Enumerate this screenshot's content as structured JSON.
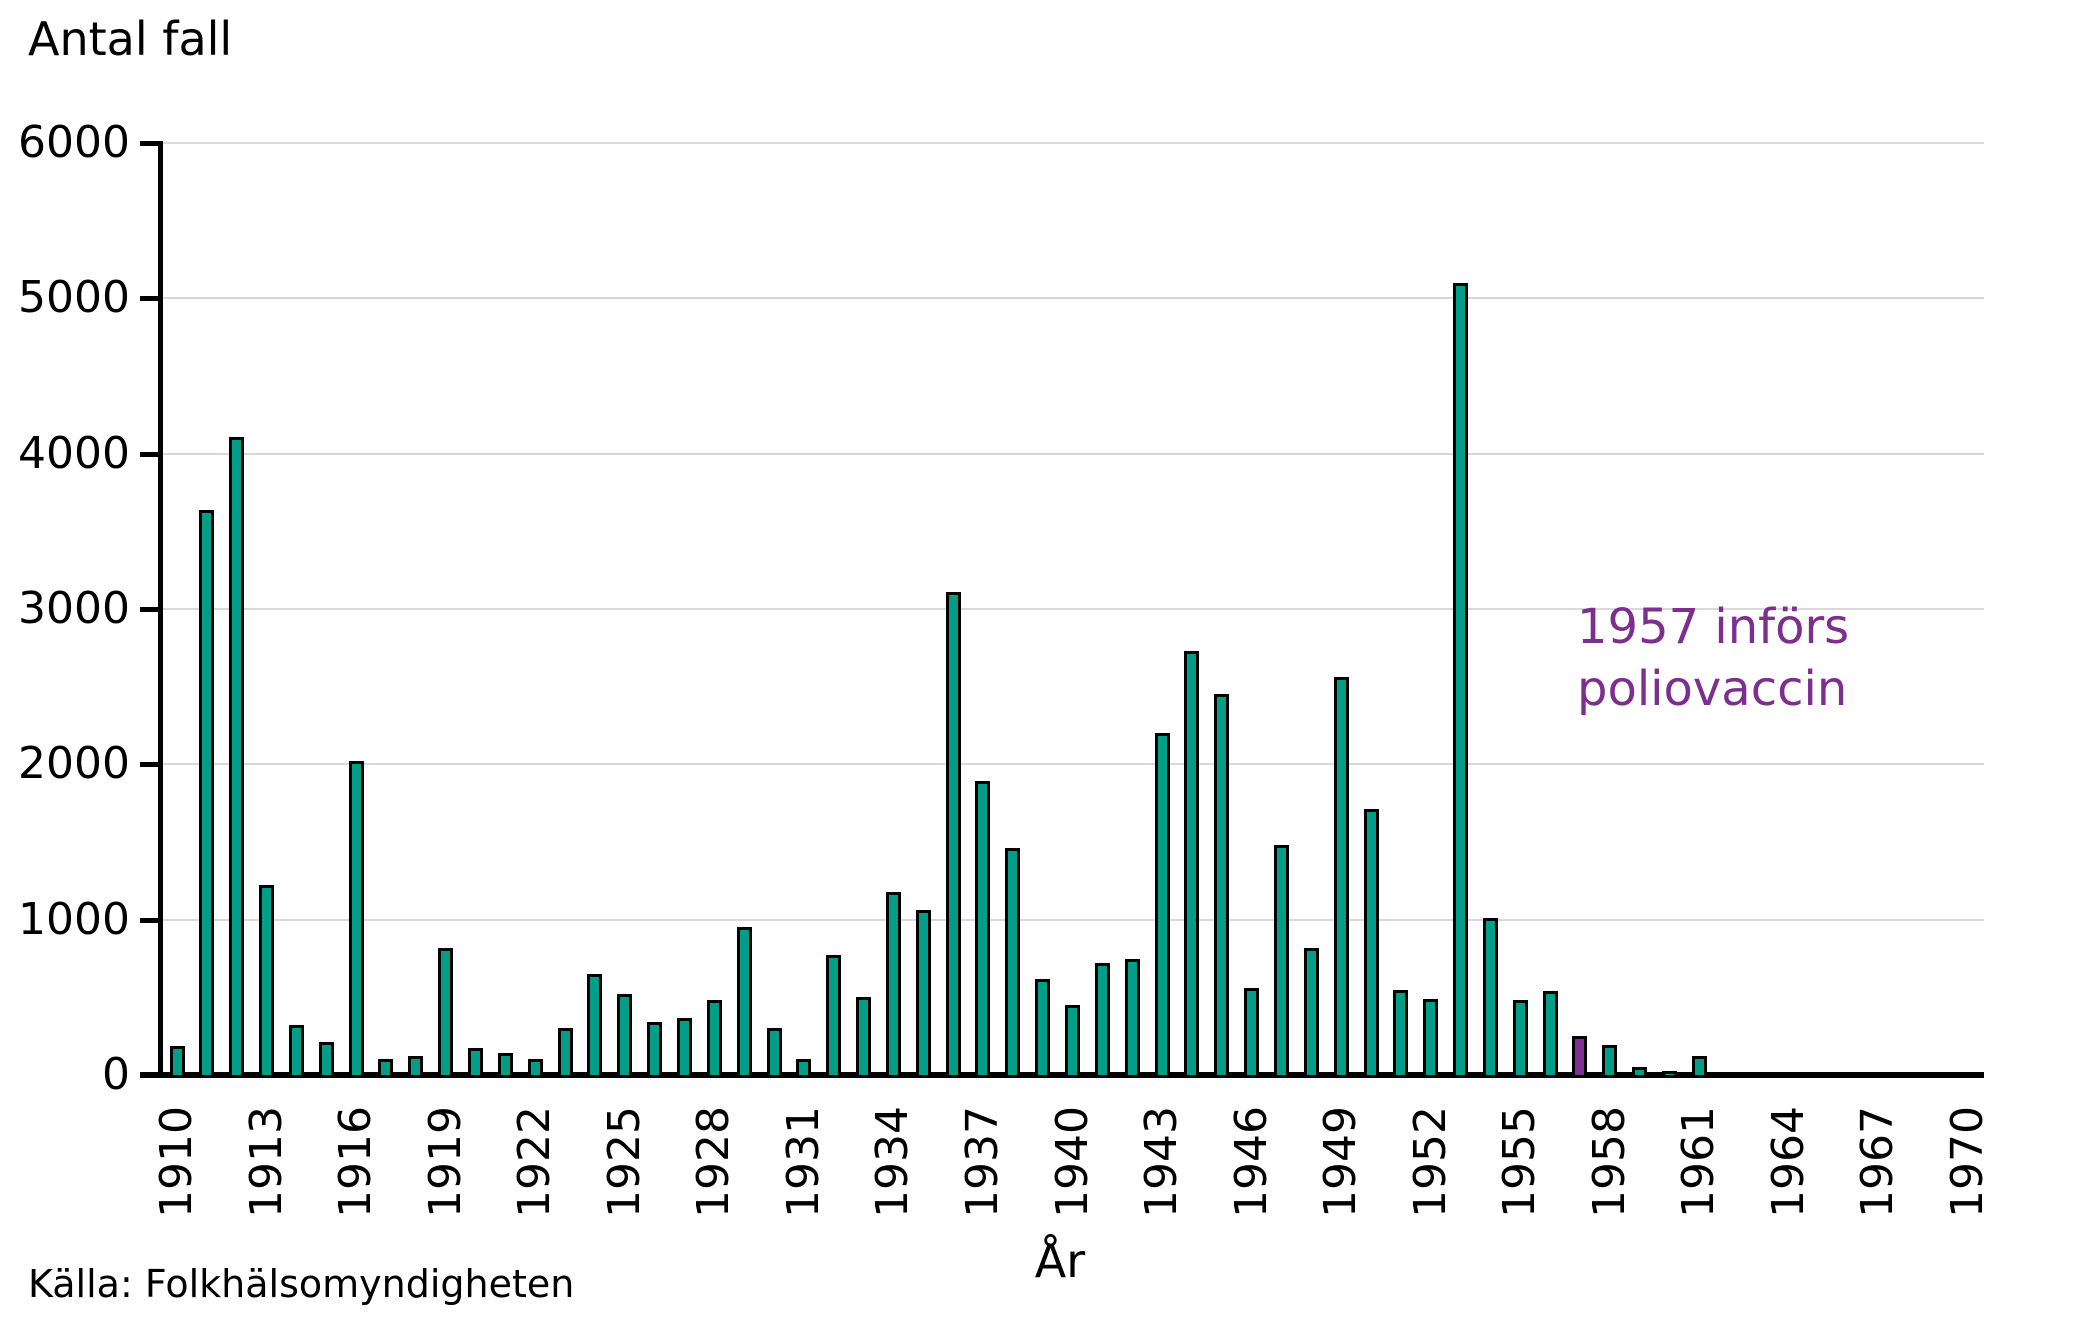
{
  "page": {
    "background": "#FFFFFF"
  },
  "chart_data": {
    "type": "bar",
    "title": "Antal fall",
    "xlabel": "År",
    "ylabel": "Antal fall",
    "source": "Källa: Folkhälsomyndigheten",
    "ylim": [
      0,
      6000
    ],
    "yticks": [
      0,
      1000,
      2000,
      3000,
      4000,
      5000,
      6000
    ],
    "xtick_labels": [
      "1910",
      "1913",
      "1916",
      "1919",
      "1922",
      "1925",
      "1928",
      "1931",
      "1934",
      "1937",
      "1940",
      "1943",
      "1946",
      "1949",
      "1952",
      "1955",
      "1958",
      "1961",
      "1964",
      "1967",
      "1970"
    ],
    "categories": [
      1910,
      1911,
      1912,
      1913,
      1914,
      1915,
      1916,
      1917,
      1918,
      1919,
      1920,
      1921,
      1922,
      1923,
      1924,
      1925,
      1926,
      1927,
      1928,
      1929,
      1930,
      1931,
      1932,
      1933,
      1934,
      1935,
      1936,
      1937,
      1938,
      1939,
      1940,
      1941,
      1942,
      1943,
      1944,
      1945,
      1946,
      1947,
      1948,
      1949,
      1950,
      1951,
      1952,
      1953,
      1954,
      1955,
      1956,
      1957,
      1958,
      1959,
      1960,
      1961,
      1962,
      1963,
      1964,
      1965,
      1966,
      1967,
      1968,
      1969,
      1970
    ],
    "values": [
      185,
      3640,
      4110,
      1220,
      320,
      210,
      2020,
      100,
      120,
      820,
      175,
      140,
      100,
      300,
      650,
      520,
      340,
      370,
      480,
      950,
      300,
      105,
      770,
      500,
      1180,
      1060,
      3110,
      1890,
      1460,
      620,
      450,
      720,
      750,
      2200,
      2730,
      2450,
      560,
      1480,
      820,
      2560,
      1710,
      550,
      490,
      5100,
      1010,
      480,
      540,
      250,
      190,
      50,
      25,
      120,
      15,
      5,
      10,
      10,
      8,
      3,
      0,
      3,
      0
    ],
    "highlight_year": 1957,
    "annotation": {
      "line1": "1957 införs",
      "line2": "poliovaccin",
      "color": "#7C2F8F"
    },
    "colors": {
      "bar": "#009E87",
      "bar_highlight": "#7D3192",
      "bar_outline": "#000000",
      "gridline": "#D9D9D9",
      "text": "#000000"
    },
    "grid": "horizontal",
    "legend": "none"
  }
}
